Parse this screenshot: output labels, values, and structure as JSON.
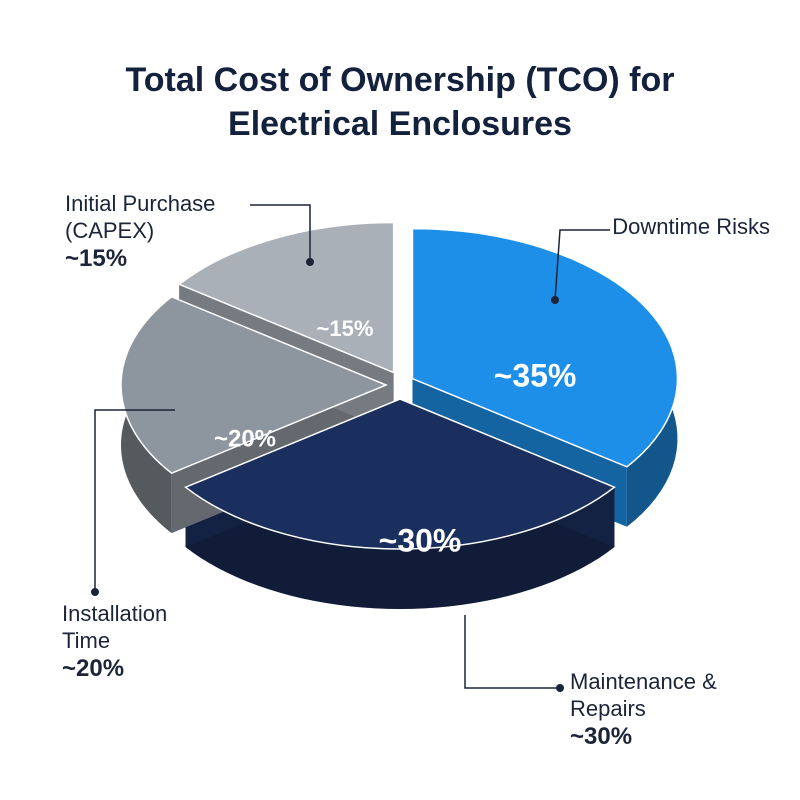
{
  "chart_data": {
    "type": "pie",
    "title": "Total Cost of Ownership (TCO) for Electrical Enclosures",
    "categories": [
      "Downtime Risks",
      "Maintenance & Repairs",
      "Installation Time",
      "Initial Purchase (CAPEX)"
    ],
    "values": [
      35,
      30,
      20,
      15
    ],
    "value_labels": [
      "~35%",
      "~30%",
      "~20%",
      "~15%"
    ],
    "colors": [
      "#1e8fe8",
      "#1b2f5e",
      "#8d969f",
      "#a9b0b8"
    ]
  }
}
